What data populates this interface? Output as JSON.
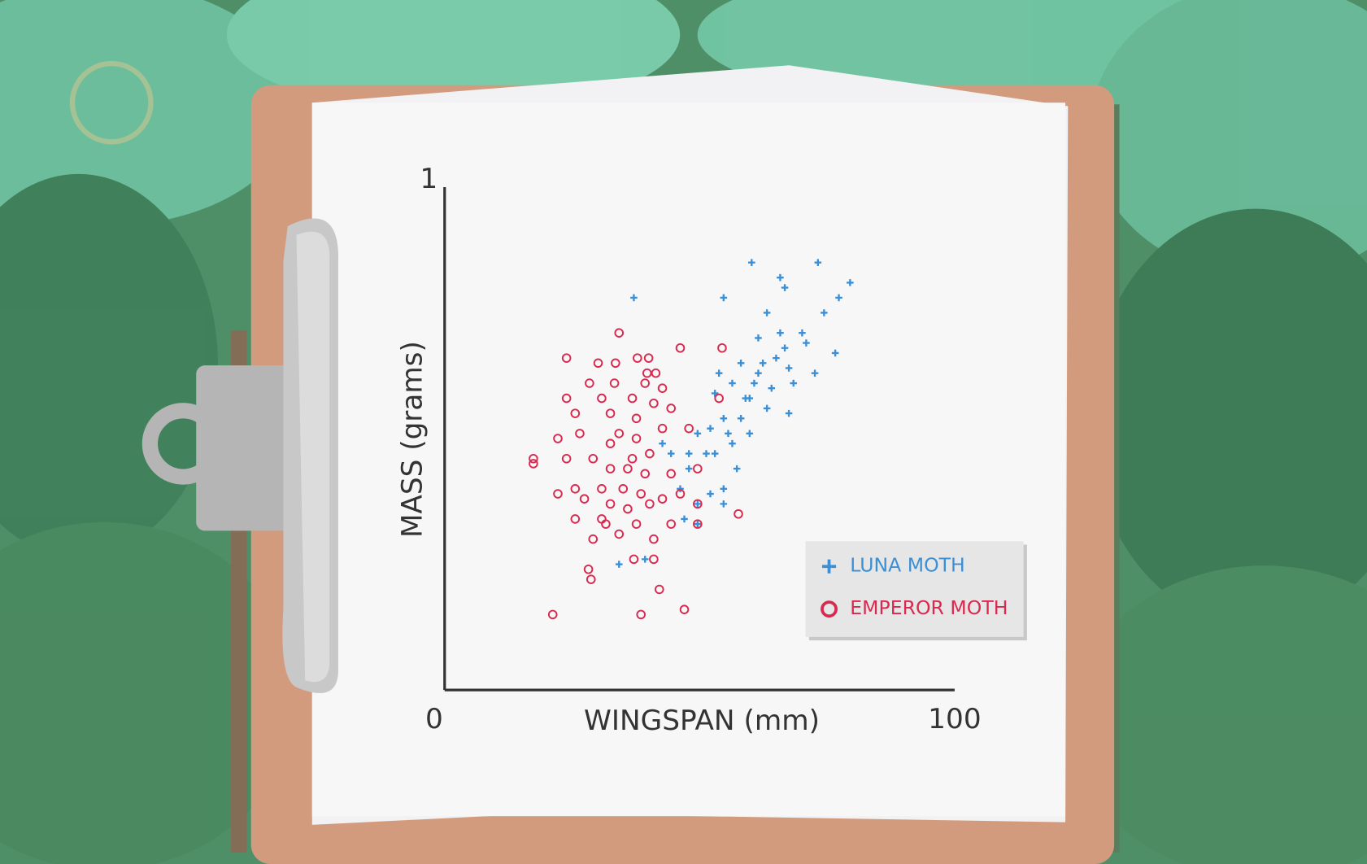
{
  "chart_data": {
    "type": "scatter",
    "x_label": "WINGSPAN (mm)",
    "y_label": "MASS (grams)",
    "xlim": [
      0,
      100
    ],
    "ylim": [
      0,
      1
    ],
    "xticks": [
      0,
      100
    ],
    "yticks": [
      1
    ],
    "grid": false,
    "legend": "lower right",
    "series": [
      {
        "name": "LUNA MOTH",
        "color": "#3a8fd6",
        "marker": "plus",
        "x": [
          37.1,
          60.2,
          73.2,
          79.5,
          65.8,
          54.7,
          66.7,
          77.3,
          70.1,
          76.6,
          63.2,
          61.5,
          65.0,
          58.1,
          56.4,
          59.8,
          53.0,
          54.7,
          49.6,
          51.3,
          47.9,
          46.2,
          54.7,
          57.3,
          59.8,
          63.2,
          67.5,
          68.4,
          72.6,
          66.7,
          61.5,
          53.0,
          56.4,
          49.6,
          52.1,
          47.0,
          34.2,
          39.3,
          44.4,
          58.1,
          60.7,
          70.9,
          74.4,
          65.8,
          59.0,
          55.6,
          53.8,
          62.4,
          67.5,
          64.1,
          52.1,
          54.7,
          42.7,
          49.6,
          47.9
        ],
        "values": [
          0.78,
          0.85,
          0.85,
          0.81,
          0.82,
          0.78,
          0.8,
          0.78,
          0.71,
          0.67,
          0.75,
          0.7,
          0.66,
          0.65,
          0.61,
          0.58,
          0.59,
          0.54,
          0.51,
          0.47,
          0.44,
          0.4,
          0.4,
          0.44,
          0.51,
          0.56,
          0.55,
          0.61,
          0.63,
          0.68,
          0.63,
          0.47,
          0.49,
          0.37,
          0.39,
          0.34,
          0.25,
          0.26,
          0.47,
          0.54,
          0.61,
          0.69,
          0.75,
          0.71,
          0.58,
          0.51,
          0.63,
          0.65,
          0.64,
          0.6,
          0.52,
          0.37,
          0.49,
          0.33,
          0.47
        ]
      },
      {
        "name": "EMPEROR MOTH",
        "color": "#d9294f",
        "marker": "circle",
        "x": [
          34.2,
          46.2,
          54.4,
          23.9,
          30.1,
          33.5,
          37.8,
          40.0,
          39.7,
          41.4,
          28.4,
          33.3,
          39.3,
          42.7,
          23.9,
          30.8,
          36.8,
          41.0,
          44.4,
          25.6,
          32.5,
          37.6,
          42.7,
          47.9,
          22.2,
          26.5,
          32.5,
          37.6,
          40.2,
          17.4,
          17.4,
          23.9,
          29.1,
          32.5,
          35.9,
          39.3,
          44.4,
          49.6,
          25.6,
          30.8,
          35.0,
          38.5,
          42.7,
          46.2,
          22.2,
          27.4,
          32.5,
          35.9,
          40.2,
          49.6,
          25.6,
          30.8,
          37.6,
          44.4,
          49.6,
          29.1,
          34.2,
          41.0,
          31.6,
          37.1,
          41.0,
          28.2,
          28.7,
          42.1,
          21.2,
          38.5,
          47.0,
          57.6,
          53.8,
          36.8,
          34.2
        ],
        "values": [
          0.71,
          0.68,
          0.68,
          0.66,
          0.65,
          0.65,
          0.66,
          0.66,
          0.63,
          0.63,
          0.61,
          0.61,
          0.61,
          0.6,
          0.58,
          0.58,
          0.58,
          0.57,
          0.56,
          0.55,
          0.55,
          0.54,
          0.52,
          0.52,
          0.5,
          0.51,
          0.49,
          0.5,
          0.47,
          0.46,
          0.45,
          0.46,
          0.46,
          0.44,
          0.44,
          0.43,
          0.43,
          0.44,
          0.4,
          0.4,
          0.4,
          0.39,
          0.38,
          0.39,
          0.39,
          0.38,
          0.37,
          0.36,
          0.37,
          0.37,
          0.34,
          0.34,
          0.33,
          0.33,
          0.33,
          0.3,
          0.31,
          0.3,
          0.33,
          0.26,
          0.26,
          0.24,
          0.22,
          0.2,
          0.15,
          0.15,
          0.16,
          0.35,
          0.58,
          0.46,
          0.51
        ]
      }
    ]
  }
}
